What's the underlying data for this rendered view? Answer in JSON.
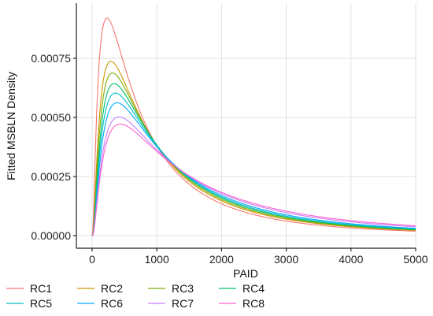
{
  "chart_data": {
    "type": "line",
    "title": "",
    "xlabel": "PAID",
    "ylabel": "Fitted MSBLN Density",
    "xlim": [
      0,
      5000
    ],
    "ylim": [
      0,
      0.00095
    ],
    "x_ticks": [
      0,
      1000,
      2000,
      3000,
      4000,
      5000
    ],
    "x_tick_labels": [
      "0",
      "1000",
      "2000",
      "3000",
      "4000",
      "5000"
    ],
    "y_ticks": [
      0,
      0.00025,
      0.0005,
      0.00075
    ],
    "y_tick_labels": [
      "0.00000",
      "0.00025",
      "0.00050",
      "0.00075"
    ],
    "grid": true,
    "legend_position": "bottom",
    "series": [
      {
        "name": "RC1",
        "color": "#F8766D",
        "peak_x": 230,
        "peak_y": 0.00092,
        "x": [
          0,
          500,
          1000,
          2000,
          3000,
          4000,
          5000
        ],
        "y": [
          0,
          0.00066,
          0.00035,
          0.000135,
          6.5e-05,
          3.3e-05,
          1.8e-05
        ]
      },
      {
        "name": "RC2",
        "color": "#CD9600",
        "peak_x": 290,
        "peak_y": 0.000737,
        "x": [
          0,
          500,
          1000,
          2000,
          3000,
          4000,
          5000
        ],
        "y": [
          0,
          0.00063,
          0.00035,
          0.000147,
          7.5e-05,
          4.1e-05,
          2.4e-05
        ]
      },
      {
        "name": "RC3",
        "color": "#7CAE00",
        "peak_x": 315,
        "peak_y": 0.000688,
        "x": [
          0,
          500,
          1000,
          2000,
          3000,
          4000,
          5000
        ],
        "y": [
          0,
          0.00061,
          0.00035,
          0.000153,
          7.9e-05,
          4.4e-05,
          2.6e-05
        ]
      },
      {
        "name": "RC4",
        "color": "#00BE67",
        "peak_x": 340,
        "peak_y": 0.000643,
        "x": [
          0,
          500,
          1000,
          2000,
          3000,
          4000,
          5000
        ],
        "y": [
          0,
          0.00059,
          0.00035,
          0.000159,
          8.3e-05,
          4.7e-05,
          2.8e-05
        ]
      },
      {
        "name": "RC5",
        "color": "#00BFC4",
        "peak_x": 360,
        "peak_y": 0.000603,
        "x": [
          0,
          500,
          1000,
          2000,
          3000,
          4000,
          5000
        ],
        "y": [
          0,
          0.00057,
          0.00035,
          0.000164,
          8.7e-05,
          5e-05,
          3e-05
        ]
      },
      {
        "name": "RC6",
        "color": "#00A9FF",
        "peak_x": 385,
        "peak_y": 0.000562,
        "x": [
          0,
          500,
          1000,
          2000,
          3000,
          4000,
          5000
        ],
        "y": [
          0,
          0.00055,
          0.00035,
          0.00017,
          9.1e-05,
          5.3e-05,
          3.2e-05
        ]
      },
      {
        "name": "RC7",
        "color": "#C77CFF",
        "peak_x": 415,
        "peak_y": 0.000502,
        "x": [
          0,
          500,
          1000,
          2000,
          3000,
          4000,
          5000
        ],
        "y": [
          0,
          0.0005,
          0.00035,
          0.000178,
          9.7e-05,
          5.7e-05,
          3.5e-05
        ]
      },
      {
        "name": "RC8",
        "color": "#FF61CC",
        "peak_x": 435,
        "peak_y": 0.000472,
        "x": [
          0,
          500,
          1000,
          2000,
          3000,
          4000,
          5000
        ],
        "y": [
          0,
          0.00047,
          0.00035,
          0.000183,
          0.000101,
          6e-05,
          3.7e-05
        ]
      }
    ]
  }
}
